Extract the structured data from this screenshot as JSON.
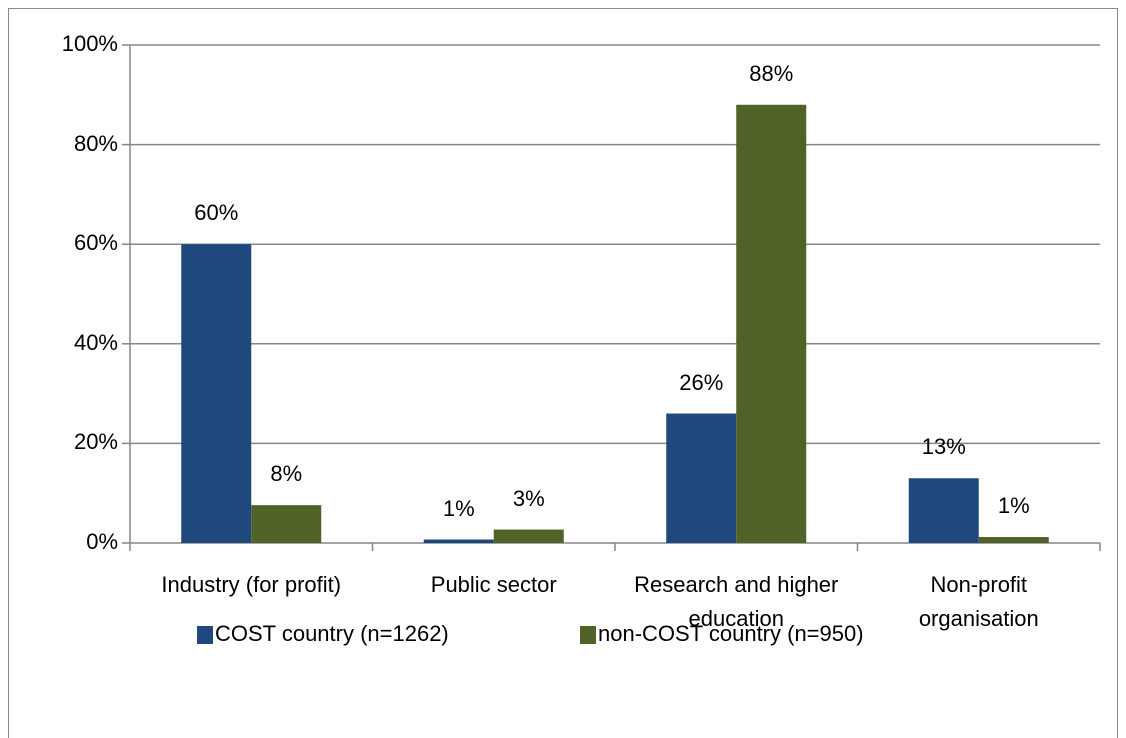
{
  "chart_data": {
    "type": "bar",
    "categories": [
      "Industry (for profit)",
      "Public sector",
      "Research and higher education",
      "Non-profit organisation"
    ],
    "series": [
      {
        "name": "COST country (n=1262)",
        "color": "#1f497d",
        "values": [
          60,
          0.7,
          26,
          13
        ],
        "value_labels": [
          "60%",
          "1%",
          "26%",
          "13%"
        ]
      },
      {
        "name": "non-COST country (n=950)",
        "color": "#4f6228",
        "values": [
          7.6,
          2.7,
          88,
          1.2
        ],
        "value_labels": [
          "8%",
          "3%",
          "88%",
          "1%"
        ]
      }
    ],
    "ylim": [
      0,
      100
    ],
    "yticks": [
      {
        "value": 0,
        "label": "0%"
      },
      {
        "value": 20,
        "label": "20%"
      },
      {
        "value": 40,
        "label": "40%"
      },
      {
        "value": 60,
        "label": "60%"
      },
      {
        "value": 80,
        "label": "80%"
      },
      {
        "value": 100,
        "label": "100%"
      }
    ],
    "grid": true
  }
}
